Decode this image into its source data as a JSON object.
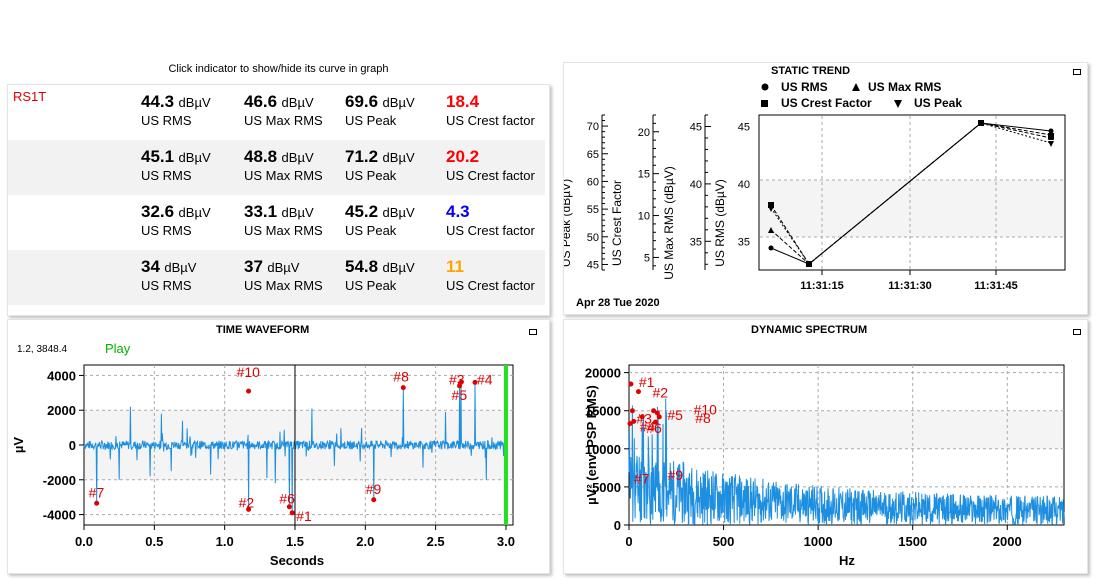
{
  "indicators": {
    "hint": "Click indicator to show/hide its curve in graph",
    "sensor": "RS1T",
    "rows": [
      {
        "rms": "44.3",
        "maxrms": "46.6",
        "peak": "69.6",
        "crest": "18.4",
        "crest_color": "#ff0000"
      },
      {
        "rms": "45.1",
        "maxrms": "48.8",
        "peak": "71.2",
        "crest": "20.2",
        "crest_color": "#ff0000"
      },
      {
        "rms": "32.6",
        "maxrms": "33.1",
        "peak": "45.2",
        "crest": "4.3",
        "crest_color": "#0000ee"
      },
      {
        "rms": "34",
        "maxrms": "37",
        "peak": "54.8",
        "crest": "11",
        "crest_color": "#ffa500"
      }
    ],
    "unit": "dBµV",
    "label_rms": "US RMS",
    "label_maxrms": "US Max RMS",
    "label_peak": "US Peak",
    "label_crest": "US Crest factor"
  },
  "static_trend": {
    "title": "STATIC TREND",
    "legend": [
      "US RMS",
      "US Max RMS",
      "US Crest Factor",
      "US Peak"
    ],
    "date": "Apr 28 Tue 2020",
    "axes": [
      {
        "label": "US Peak (dBµV)",
        "ticks": [
          "70",
          "65",
          "60",
          "55",
          "50",
          "45"
        ]
      },
      {
        "label": "US Crest Factor",
        "ticks": [
          "20",
          "15",
          "10",
          "5"
        ]
      },
      {
        "label": "US Max RMS (dBµV)",
        "ticks": [
          "45",
          "40",
          "35"
        ]
      },
      {
        "label": "US RMS (dBµV)",
        "ticks": [
          "45",
          "40",
          "35"
        ]
      }
    ],
    "xticks": [
      "11:31:15",
      "11:31:30",
      "11:31:45"
    ]
  },
  "time_waveform": {
    "title": "TIME WAVEFORM",
    "cursor_readout": "1.2, 3848.4",
    "play_label": "Play",
    "ylabel": "µV",
    "xlabel": "Seconds",
    "yticks": [
      "4000",
      "2000",
      "0",
      "-2000",
      "-4000"
    ],
    "xticks": [
      "0.0",
      "0.5",
      "1.0",
      "1.5",
      "2.0",
      "2.5",
      "3.0"
    ],
    "markers": [
      {
        "label": "#10",
        "x": 1.17,
        "y": 3100
      },
      {
        "label": "#8",
        "x": 2.27,
        "y": 3300
      },
      {
        "label": "#3",
        "x": 2.68,
        "y": 3600
      },
      {
        "label": "#4",
        "x": 2.78,
        "y": 3600
      },
      {
        "label": "#5",
        "x": 2.67,
        "y": 3400
      },
      {
        "label": "#7",
        "x": 0.09,
        "y": -3350
      },
      {
        "label": "#2",
        "x": 1.17,
        "y": -3700
      },
      {
        "label": "#6",
        "x": 1.46,
        "y": -3550
      },
      {
        "label": "#1",
        "x": 1.48,
        "y": -3900
      },
      {
        "label": "#9",
        "x": 2.06,
        "y": -3150
      }
    ]
  },
  "dynamic_spectrum": {
    "title": "DYNAMIC SPECTRUM",
    "ylabel": "µV² (env. PSP RMS)",
    "xlabel": "Hz",
    "yticks": [
      "20000",
      "15000",
      "10000",
      "5000",
      "0"
    ],
    "xticks": [
      "0",
      "500",
      "1000",
      "1500",
      "2000"
    ],
    "markers": [
      {
        "label": "#1",
        "x": 10,
        "y": 18500
      },
      {
        "label": "#2",
        "x": 50,
        "y": 17500
      },
      {
        "label": "#10",
        "x": 130,
        "y": 15000
      },
      {
        "label": "#8",
        "x": 160,
        "y": 14200
      },
      {
        "label": "#5",
        "x": 150,
        "y": 14700
      },
      {
        "label": "#3",
        "x": 18,
        "y": 15000
      },
      {
        "label": "#4",
        "x": 25,
        "y": 13600
      },
      {
        "label": "#6",
        "x": 70,
        "y": 14200
      },
      {
        "label": "#7",
        "x": 5,
        "y": 13300
      },
      {
        "label": "#9",
        "x": 140,
        "y": 13500
      }
    ]
  }
}
